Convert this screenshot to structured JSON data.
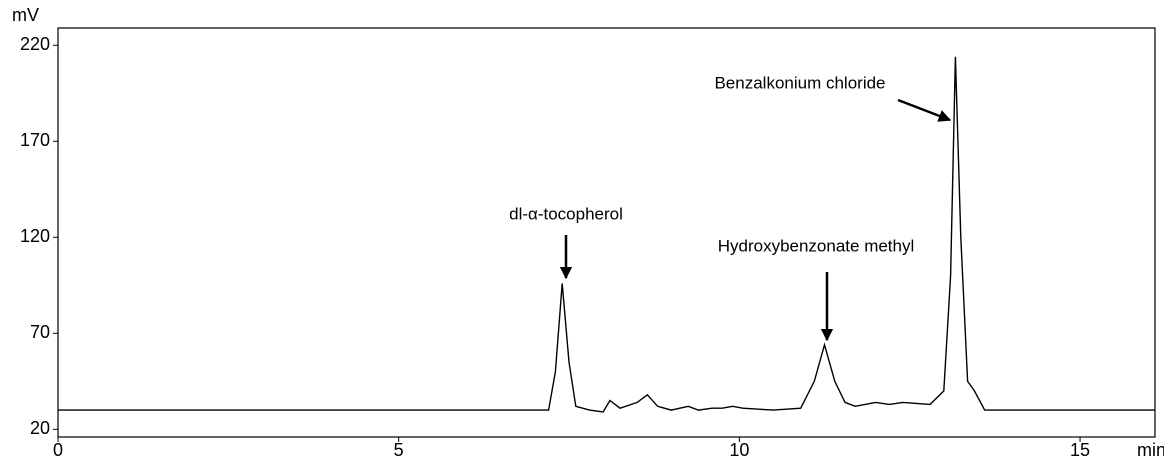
{
  "chart_data": {
    "type": "line",
    "x_label": "min",
    "y_label": "mV",
    "annotations": [
      "dl-α-tocopherol",
      "Hydroxybenzonate methyl",
      "Benzalkonium chloride"
    ],
    "x": [
      0,
      7.2,
      7.3,
      7.4,
      7.5,
      7.6,
      7.8,
      8.0,
      8.1,
      8.25,
      8.5,
      8.65,
      8.8,
      9.0,
      9.25,
      9.4,
      9.6,
      9.75,
      9.9,
      10.05,
      10.5,
      10.9,
      11.1,
      11.25,
      11.4,
      11.55,
      11.7,
      12.0,
      12.2,
      12.4,
      12.8,
      13.0,
      13.1,
      13.17,
      13.25,
      13.35,
      13.45,
      13.6,
      14.5,
      16.1
    ],
    "series": [
      {
        "color": "#000000",
        "values": [
          30,
          30,
          50,
          96,
          55,
          32,
          30,
          29,
          35,
          31,
          34,
          38,
          32,
          30,
          32,
          30,
          31,
          31,
          32,
          31,
          30,
          31,
          45,
          64,
          45,
          34,
          32,
          34,
          33,
          34,
          33,
          40,
          100,
          214,
          120,
          45,
          40,
          30,
          30,
          30
        ]
      }
    ],
    "xlim": [
      0,
      16.1
    ],
    "ylim": [
      16,
      229
    ],
    "xticks": [
      0,
      5,
      10,
      15
    ],
    "yticks": [
      20,
      70,
      120,
      170,
      220
    ]
  }
}
